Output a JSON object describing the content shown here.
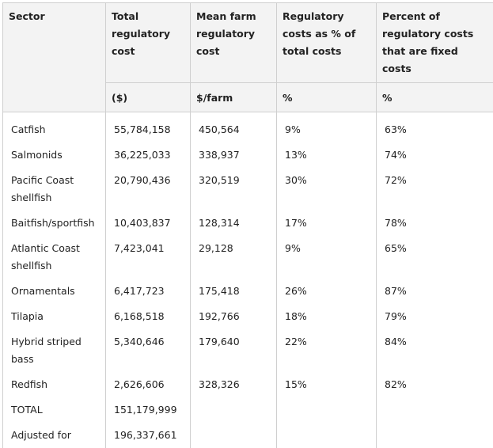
{
  "table": {
    "headers": [
      "Sector",
      "Total regulatory cost",
      "Mean farm regulatory cost",
      "Regulatory costs as % of total costs",
      "Percent of regulatory costs that are fixed costs"
    ],
    "units": [
      "($)",
      "$/farm",
      "%",
      "%"
    ],
    "rows": [
      [
        "Catfish",
        "55,784,158",
        "450,564",
        "9%",
        "63%"
      ],
      [
        "Salmonids",
        "36,225,033",
        "338,937",
        "13%",
        "74%"
      ],
      [
        "Pacific Coast shellfish",
        "20,790,436",
        "320,519",
        "30%",
        "72%"
      ],
      [
        "Baitfish/sportfish",
        "10,403,837",
        "128,314",
        "17%",
        "78%"
      ],
      [
        "Atlantic Coast shellfish",
        "7,423,041",
        "29,128",
        "9%",
        "65%"
      ],
      [
        "Ornamentals",
        "6,417,723",
        "175,418",
        "26%",
        "87%"
      ],
      [
        "Tilapia",
        "6,168,518",
        "192,766",
        "18%",
        "79%"
      ],
      [
        "Hybrid striped bass",
        "5,340,646",
        "179,640",
        "22%",
        "84%"
      ],
      [
        "Redfish",
        "2,626,606",
        "328,326",
        "15%",
        "82%"
      ],
      [
        "TOTAL",
        "151,179,999",
        "",
        "",
        ""
      ],
      [
        "Adjusted for",
        "196,337,661",
        "",
        "",
        ""
      ]
    ]
  }
}
